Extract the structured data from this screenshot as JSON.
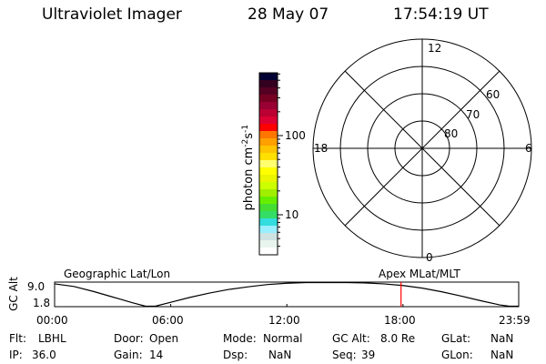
{
  "header": {
    "instrument": "Ultraviolet Imager",
    "date": "28 May 07",
    "time": "17:54:19 UT"
  },
  "colorbar": {
    "label": "photon cm",
    "label_exp1": "-2",
    "label_mid": "s",
    "label_exp2": "-1",
    "ticks": [
      {
        "value": 100,
        "label": "100"
      },
      {
        "value": 10,
        "label": "10"
      }
    ],
    "scale": "log",
    "colors": [
      "#000033",
      "#33001f",
      "#550022",
      "#770022",
      "#990033",
      "#bb0033",
      "#dd0033",
      "#ff0000",
      "#ff7700",
      "#ff9f00",
      "#ffc400",
      "#ffe000",
      "#ffff70",
      "#ffff00",
      "#eaf500",
      "#ccff00",
      "#a0ee00",
      "#66ee00",
      "#44dd33",
      "#33dd66",
      "#33dddd",
      "#99eeff",
      "#cfe2e2",
      "#e8f4ee",
      "#ffffff"
    ]
  },
  "polar": {
    "mlt_labels": {
      "top": "12",
      "right": "6",
      "bottom": "0",
      "left": "18"
    },
    "lat_circles": [
      {
        "value": 80,
        "label": "80"
      },
      {
        "value": 70,
        "label": "70"
      },
      {
        "value": 60,
        "label": "60"
      }
    ]
  },
  "chart_data": {
    "type": "line",
    "title_left": "Geographic Lat/Lon",
    "title_right": "Apex MLat/MLT",
    "ylabel": "GC Alt",
    "yticks": [
      "9.0",
      "1.8"
    ],
    "ylim": [
      1.8,
      9.0
    ],
    "xticks": [
      "00:00",
      "06:00",
      "12:00",
      "18:00",
      "23:59"
    ],
    "xlim_hours": [
      0,
      23.98
    ],
    "current_time_hours": 17.9,
    "current_marker_color": "#ff0000",
    "x_hours": [
      0,
      1,
      2,
      3,
      4,
      4.7,
      5.2,
      6,
      7,
      8,
      9,
      10,
      11,
      12,
      13,
      14,
      15,
      16,
      17,
      18,
      19,
      20,
      21,
      22,
      23,
      23.5,
      23.98
    ],
    "y": [
      8.6,
      7.8,
      6.3,
      4.6,
      2.9,
      1.8,
      1.8,
      3.0,
      4.5,
      5.8,
      6.9,
      7.7,
      8.4,
      8.8,
      9.0,
      9.0,
      9.0,
      8.9,
      8.6,
      8.1,
      7.3,
      6.2,
      4.9,
      3.5,
      2.2,
      1.8,
      1.8
    ]
  },
  "status": {
    "row1": [
      {
        "label": "Flt:",
        "value": "LBHL"
      },
      {
        "label": "Door:",
        "value": "Open"
      },
      {
        "label": "Mode:",
        "value": "Normal"
      },
      {
        "label": "GC Alt:",
        "value": "8.0 Re"
      },
      {
        "label": "GLat:",
        "value": "NaN"
      }
    ],
    "row2": [
      {
        "label": "IP:",
        "value": "36.0"
      },
      {
        "label": "Gain:",
        "value": "14"
      },
      {
        "label": "Dsp:",
        "value": "NaN"
      },
      {
        "label": "Seq:",
        "value": "39"
      },
      {
        "label": "GLon:",
        "value": "NaN"
      }
    ]
  }
}
